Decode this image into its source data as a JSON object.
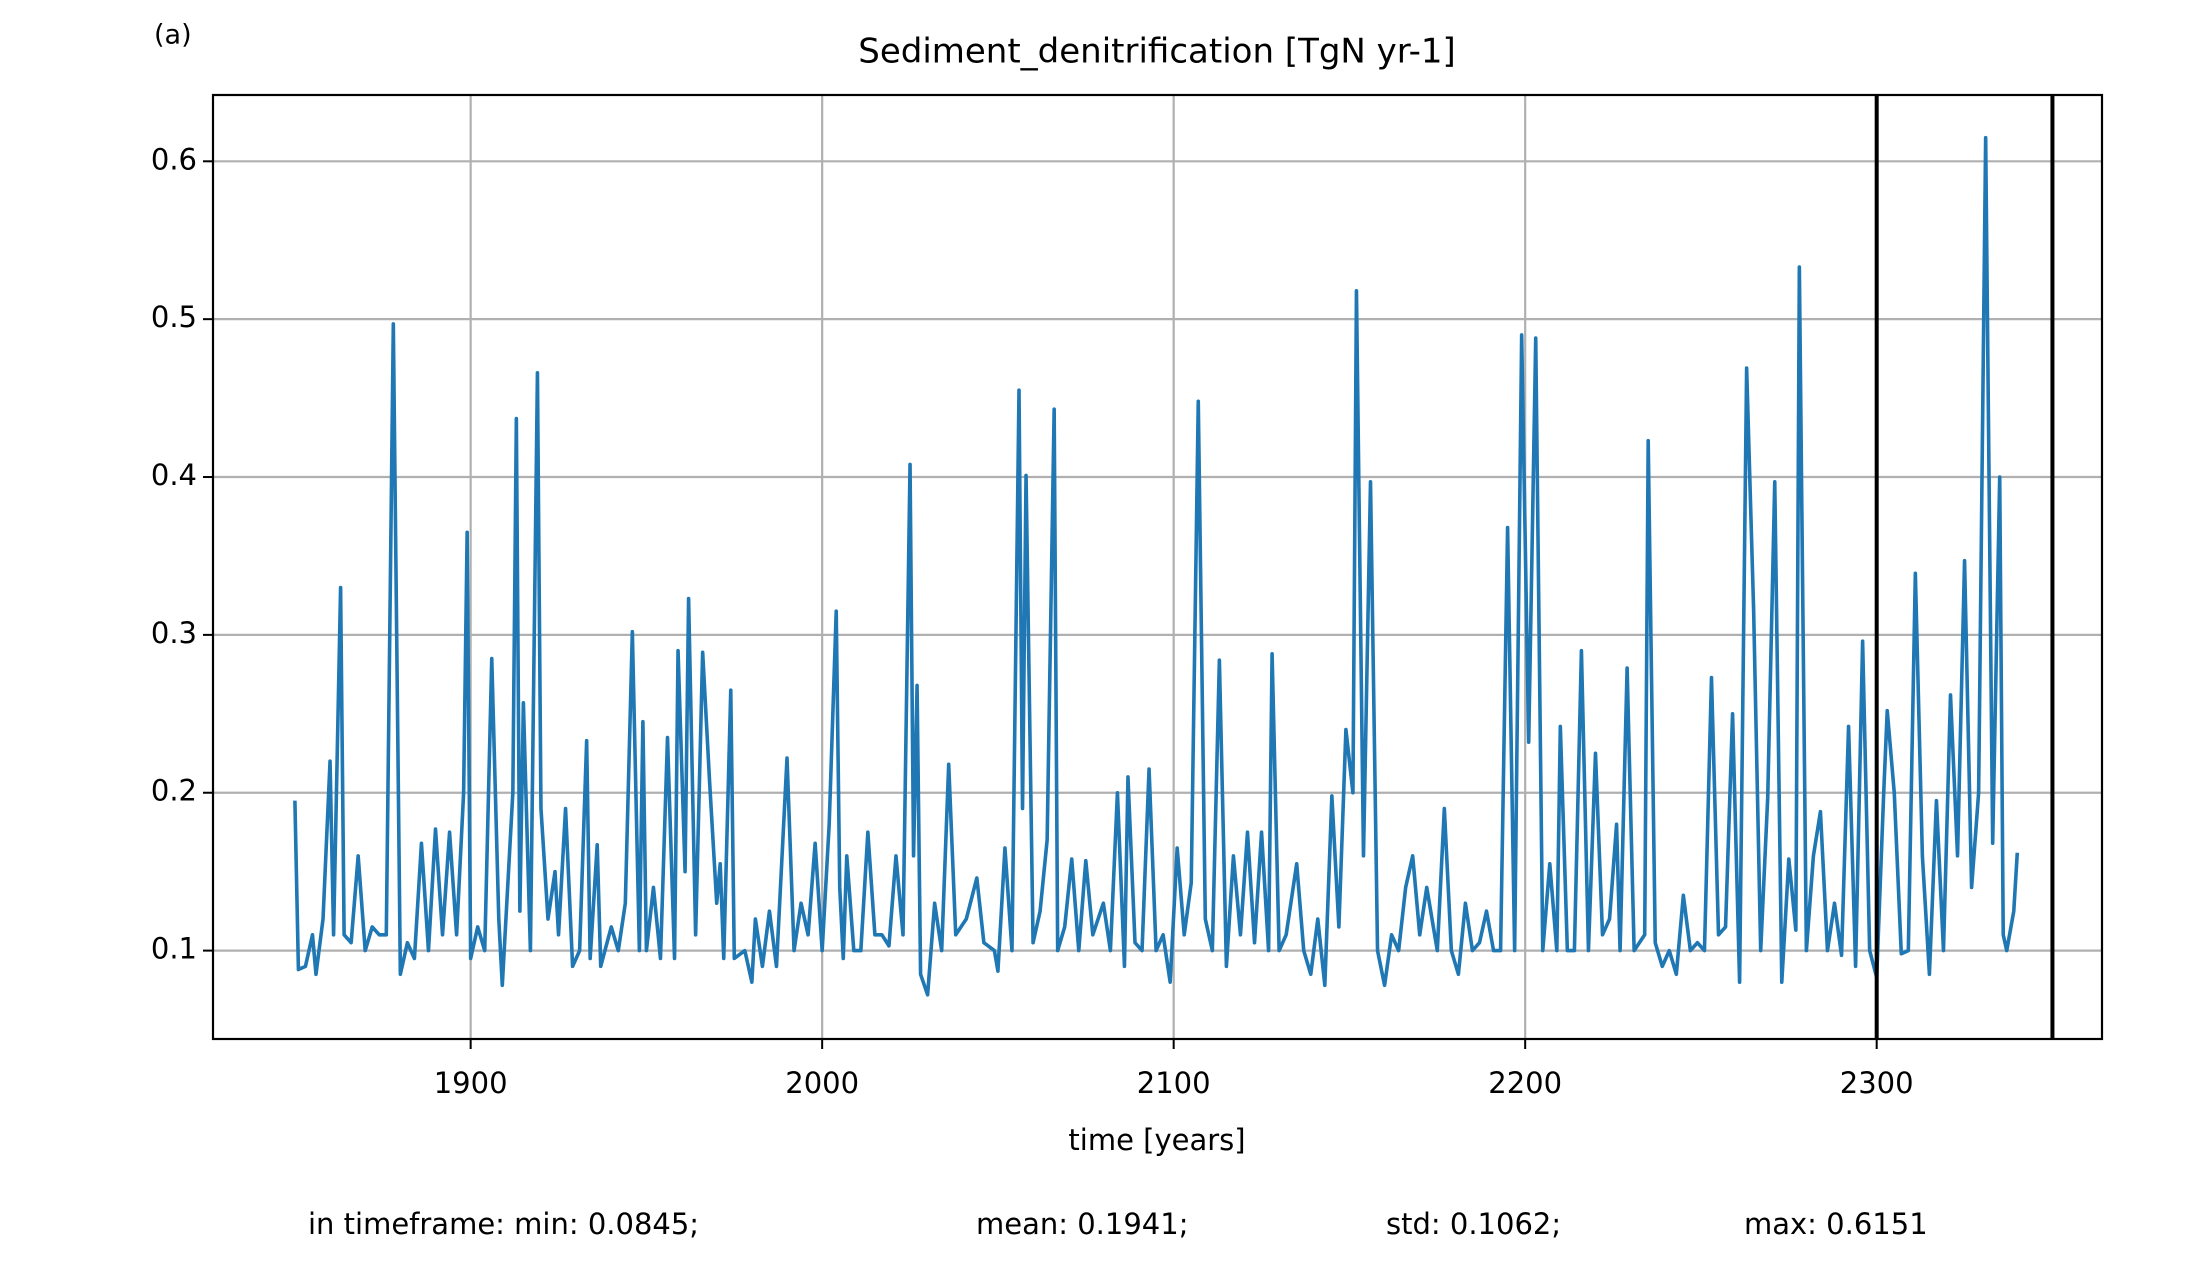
{
  "chart_data": {
    "type": "line",
    "panel_label": "(a)",
    "title": "Sediment_denitrification [TgN yr-1]",
    "x_label": "time [years]",
    "color": "#1f77b4",
    "grid": true,
    "xlim": [
      1826.7,
      2364.1
    ],
    "xticks": [
      1900,
      2000,
      2100,
      2200,
      2300
    ],
    "ylim": [
      0.044,
      0.642
    ],
    "yticks": [
      0.1,
      0.2,
      0.3,
      0.4,
      0.5,
      0.6
    ],
    "vlines": [
      2300,
      2350
    ],
    "annotations": [
      "in timeframe: min: 0.0845;",
      "mean: 0.1941;",
      "std: 0.1062;",
      "max: 0.6151"
    ],
    "x": [
      1850,
      1851,
      1853,
      1855,
      1856,
      1858,
      1860,
      1861,
      1863,
      1864,
      1866,
      1868,
      1870,
      1872,
      1874,
      1876,
      1878,
      1880,
      1882,
      1884,
      1886,
      1888,
      1890,
      1892,
      1894,
      1896,
      1898,
      1899,
      1900,
      1902,
      1904,
      1906,
      1908,
      1909,
      1912,
      1913,
      1914,
      1915,
      1917,
      1919,
      1920,
      1922,
      1924,
      1925,
      1927,
      1929,
      1931,
      1933,
      1934,
      1936,
      1937,
      1940,
      1942,
      1944,
      1946,
      1948,
      1949,
      1950,
      1952,
      1954,
      1956,
      1958,
      1959,
      1961,
      1962,
      1964,
      1966,
      1968,
      1970,
      1971,
      1972,
      1974,
      1975,
      1978,
      1980,
      1981,
      1983,
      1985,
      1987,
      1990,
      1992,
      1994,
      1996,
      1998,
      2000,
      2002,
      2004,
      2005,
      2006,
      2007,
      2009,
      2011,
      2013,
      2015,
      2017,
      2019,
      2021,
      2023,
      2025,
      2026,
      2027,
      2028,
      2030,
      2032,
      2034,
      2036,
      2038,
      2041,
      2044,
      2046,
      2049,
      2050,
      2052,
      2054,
      2056,
      2057,
      2058,
      2060,
      2062,
      2064,
      2066,
      2067,
      2069,
      2071,
      2073,
      2075,
      2077,
      2080,
      2082,
      2084,
      2086,
      2087,
      2089,
      2091,
      2093,
      2095,
      2097,
      2099,
      2101,
      2103,
      2105,
      2107,
      2109,
      2111,
      2113,
      2115,
      2117,
      2119,
      2121,
      2123,
      2125,
      2127,
      2128,
      2130,
      2132,
      2135,
      2137,
      2139,
      2141,
      2143,
      2145,
      2147,
      2149,
      2151,
      2152,
      2154,
      2156,
      2158,
      2160,
      2162,
      2164,
      2166,
      2168,
      2170,
      2172,
      2175,
      2177,
      2179,
      2181,
      2183,
      2185,
      2187,
      2189,
      2191,
      2193,
      2195,
      2197,
      2199,
      2201,
      2203,
      2205,
      2207,
      2209,
      2210,
      2212,
      2214,
      2216,
      2218,
      2220,
      2222,
      2224,
      2226,
      2227,
      2229,
      2231,
      2234,
      2235,
      2237,
      2239,
      2241,
      2243,
      2245,
      2247,
      2249,
      2251,
      2253,
      2255,
      2257,
      2259,
      2261,
      2263,
      2265,
      2267,
      2269,
      2271,
      2273,
      2275,
      2277,
      2278,
      2280,
      2282,
      2284,
      2286,
      2288,
      2290,
      2292,
      2294,
      2296,
      2298,
      2300,
      2302,
      2303,
      2305,
      2307,
      2309,
      2311,
      2313,
      2315,
      2317,
      2319,
      2321,
      2323,
      2325,
      2327,
      2329,
      2331,
      2333,
      2335,
      2336,
      2337,
      2339,
      2340
    ],
    "values": [
      0.195,
      0.088,
      0.09,
      0.11,
      0.085,
      0.12,
      0.22,
      0.11,
      0.33,
      0.11,
      0.105,
      0.16,
      0.1,
      0.115,
      0.11,
      0.11,
      0.497,
      0.085,
      0.105,
      0.095,
      0.168,
      0.1,
      0.177,
      0.11,
      0.175,
      0.11,
      0.2,
      0.365,
      0.095,
      0.115,
      0.1,
      0.285,
      0.12,
      0.078,
      0.2,
      0.437,
      0.125,
      0.257,
      0.1,
      0.466,
      0.19,
      0.12,
      0.15,
      0.11,
      0.19,
      0.09,
      0.1,
      0.233,
      0.095,
      0.167,
      0.09,
      0.115,
      0.1,
      0.13,
      0.302,
      0.1,
      0.245,
      0.1,
      0.14,
      0.095,
      0.235,
      0.095,
      0.29,
      0.15,
      0.323,
      0.11,
      0.289,
      0.206,
      0.13,
      0.155,
      0.095,
      0.265,
      0.095,
      0.1,
      0.08,
      0.12,
      0.09,
      0.125,
      0.09,
      0.222,
      0.1,
      0.13,
      0.11,
      0.168,
      0.1,
      0.18,
      0.315,
      0.14,
      0.095,
      0.16,
      0.1,
      0.1,
      0.175,
      0.11,
      0.11,
      0.103,
      0.16,
      0.11,
      0.408,
      0.16,
      0.268,
      0.085,
      0.072,
      0.13,
      0.1,
      0.218,
      0.11,
      0.12,
      0.146,
      0.105,
      0.1,
      0.087,
      0.165,
      0.1,
      0.455,
      0.19,
      0.401,
      0.105,
      0.125,
      0.17,
      0.443,
      0.1,
      0.115,
      0.158,
      0.1,
      0.157,
      0.11,
      0.13,
      0.1,
      0.2,
      0.09,
      0.21,
      0.105,
      0.1,
      0.215,
      0.1,
      0.11,
      0.08,
      0.165,
      0.11,
      0.143,
      0.448,
      0.12,
      0.1,
      0.284,
      0.09,
      0.16,
      0.11,
      0.175,
      0.105,
      0.175,
      0.1,
      0.288,
      0.1,
      0.11,
      0.155,
      0.1,
      0.085,
      0.12,
      0.078,
      0.198,
      0.115,
      0.24,
      0.2,
      0.518,
      0.16,
      0.397,
      0.1,
      0.078,
      0.11,
      0.1,
      0.14,
      0.16,
      0.11,
      0.14,
      0.1,
      0.19,
      0.1,
      0.085,
      0.13,
      0.1,
      0.105,
      0.125,
      0.1,
      0.1,
      0.368,
      0.1,
      0.49,
      0.232,
      0.488,
      0.1,
      0.155,
      0.1,
      0.242,
      0.1,
      0.1,
      0.29,
      0.1,
      0.225,
      0.11,
      0.12,
      0.18,
      0.1,
      0.279,
      0.1,
      0.11,
      0.423,
      0.105,
      0.09,
      0.1,
      0.085,
      0.135,
      0.1,
      0.105,
      0.1,
      0.273,
      0.11,
      0.115,
      0.25,
      0.08,
      0.469,
      0.315,
      0.1,
      0.197,
      0.397,
      0.08,
      0.158,
      0.113,
      0.533,
      0.1,
      0.16,
      0.188,
      0.1,
      0.13,
      0.097,
      0.242,
      0.09,
      0.296,
      0.1,
      0.083,
      0.2,
      0.252,
      0.2,
      0.098,
      0.1,
      0.339,
      0.16,
      0.085,
      0.195,
      0.1,
      0.262,
      0.16,
      0.347,
      0.14,
      0.2,
      0.615,
      0.168,
      0.4,
      0.11,
      0.1,
      0.125,
      0.162
    ]
  }
}
